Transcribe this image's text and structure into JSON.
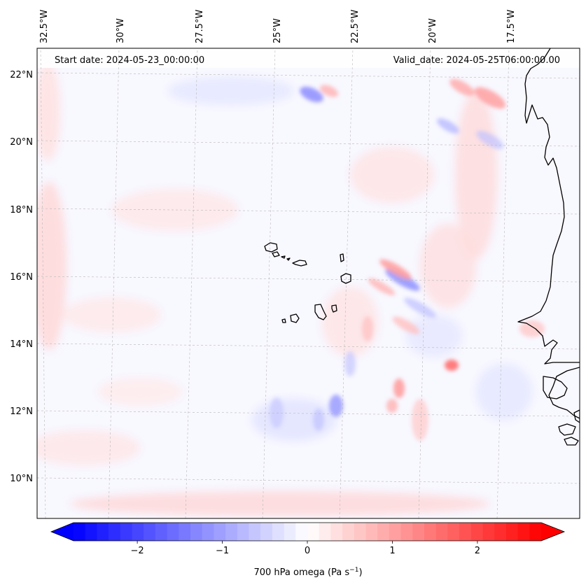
{
  "map": {
    "start_date": "Start date: 2024-05-23_00:00:00",
    "valid_date": "Valid_date: 2024-05-25T06:00:00.00",
    "lon_labels": [
      "32.5°W",
      "30°W",
      "27.5°W",
      "25°W",
      "22.5°W",
      "20°W",
      "17.5°W"
    ],
    "lat_labels": [
      "22°N",
      "20°N",
      "18°N",
      "16°N",
      "14°N",
      "12°N",
      "10°N"
    ]
  },
  "colorbar": {
    "label_prefix": "700 hPa omega (Pa s",
    "label_exp": "−1",
    "label_suffix": ")",
    "ticks": [
      "−2",
      "−1",
      "0",
      "1",
      "2"
    ],
    "min": -2.75,
    "max": 2.75,
    "neg_color": "#0000ff",
    "pos_color": "#ff0000"
  },
  "colors": {
    "coast": "#000000",
    "grid": "#b8b8b8",
    "field_base": "#f7f7ff"
  }
}
